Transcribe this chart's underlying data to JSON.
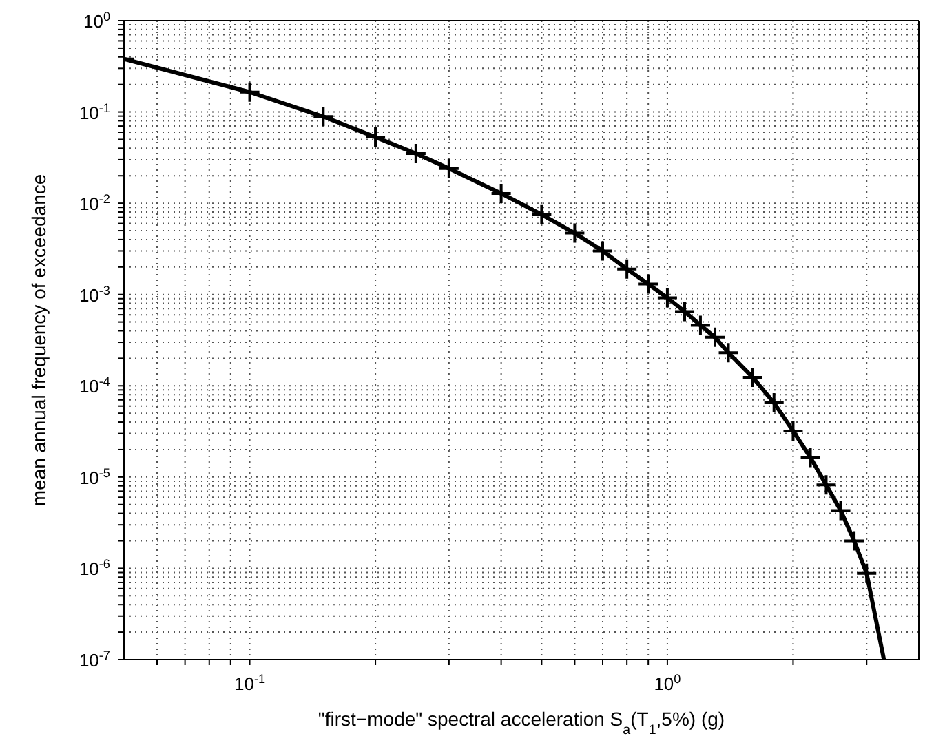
{
  "chart_data": {
    "type": "line",
    "xlabel": "\"first−mode\" spectral acceleration S$_{a}$(T$_{1}$,5%) (g)",
    "ylabel": "mean annual frequency of exceedance",
    "log": "xy",
    "grid": true,
    "marker": "cross",
    "line_style": "solid",
    "xlim": [
      0.05,
      4
    ],
    "ylim": [
      1e-07,
      1
    ],
    "xticks": [
      {
        "value": 0.06,
        "label": null
      },
      {
        "value": 0.07,
        "label": null
      },
      {
        "value": 0.08,
        "label": null
      },
      {
        "value": 0.09,
        "label": null
      },
      {
        "value": 0.1,
        "label": "10$^{-1}$"
      },
      {
        "value": 0.2,
        "label": null
      },
      {
        "value": 0.3,
        "label": null
      },
      {
        "value": 0.4,
        "label": null
      },
      {
        "value": 0.5,
        "label": null
      },
      {
        "value": 0.6,
        "label": null
      },
      {
        "value": 0.7,
        "label": null
      },
      {
        "value": 0.8,
        "label": null
      },
      {
        "value": 0.9,
        "label": null
      },
      {
        "value": 1,
        "label": "10$^{0}$"
      },
      {
        "value": 2,
        "label": null
      },
      {
        "value": 3,
        "label": null
      }
    ],
    "yticks": [
      {
        "value": 1e-07,
        "label": "10$^{-7}$"
      },
      {
        "value": 2e-07,
        "label": null
      },
      {
        "value": 3e-07,
        "label": null
      },
      {
        "value": 4e-07,
        "label": null
      },
      {
        "value": 5e-07,
        "label": null
      },
      {
        "value": 6e-07,
        "label": null
      },
      {
        "value": 7e-07,
        "label": null
      },
      {
        "value": 8e-07,
        "label": null
      },
      {
        "value": 9e-07,
        "label": null
      },
      {
        "value": 1e-06,
        "label": "10$^{-6}$"
      },
      {
        "value": 2e-06,
        "label": null
      },
      {
        "value": 3e-06,
        "label": null
      },
      {
        "value": 4e-06,
        "label": null
      },
      {
        "value": 5e-06,
        "label": null
      },
      {
        "value": 6e-06,
        "label": null
      },
      {
        "value": 7e-06,
        "label": null
      },
      {
        "value": 8e-06,
        "label": null
      },
      {
        "value": 9e-06,
        "label": null
      },
      {
        "value": 1e-05,
        "label": "10$^{-5}$"
      },
      {
        "value": 2e-05,
        "label": null
      },
      {
        "value": 3e-05,
        "label": null
      },
      {
        "value": 4e-05,
        "label": null
      },
      {
        "value": 5e-05,
        "label": null
      },
      {
        "value": 6e-05,
        "label": null
      },
      {
        "value": 7e-05,
        "label": null
      },
      {
        "value": 8e-05,
        "label": null
      },
      {
        "value": 9e-05,
        "label": null
      },
      {
        "value": 0.0001,
        "label": "10$^{-4}$"
      },
      {
        "value": 0.0002,
        "label": null
      },
      {
        "value": 0.0003,
        "label": null
      },
      {
        "value": 0.0004,
        "label": null
      },
      {
        "value": 0.0005,
        "label": null
      },
      {
        "value": 0.0006,
        "label": null
      },
      {
        "value": 0.0007,
        "label": null
      },
      {
        "value": 0.0008,
        "label": null
      },
      {
        "value": 0.0009,
        "label": null
      },
      {
        "value": 0.001,
        "label": "10$^{-3}$"
      },
      {
        "value": 0.002,
        "label": null
      },
      {
        "value": 0.003,
        "label": null
      },
      {
        "value": 0.004,
        "label": null
      },
      {
        "value": 0.005,
        "label": null
      },
      {
        "value": 0.006,
        "label": null
      },
      {
        "value": 0.007,
        "label": null
      },
      {
        "value": 0.008,
        "label": null
      },
      {
        "value": 0.009,
        "label": null
      },
      {
        "value": 0.01,
        "label": "10$^{-2}$"
      },
      {
        "value": 0.02,
        "label": null
      },
      {
        "value": 0.03,
        "label": null
      },
      {
        "value": 0.04,
        "label": null
      },
      {
        "value": 0.05,
        "label": null
      },
      {
        "value": 0.06,
        "label": null
      },
      {
        "value": 0.07,
        "label": null
      },
      {
        "value": 0.08,
        "label": null
      },
      {
        "value": 0.09,
        "label": null
      },
      {
        "value": 0.1,
        "label": "10$^{-1}$"
      },
      {
        "value": 0.2,
        "label": null
      },
      {
        "value": 0.3,
        "label": null
      },
      {
        "value": 0.4,
        "label": null
      },
      {
        "value": 0.5,
        "label": null
      },
      {
        "value": 0.6,
        "label": null
      },
      {
        "value": 0.7,
        "label": null
      },
      {
        "value": 0.8,
        "label": null
      },
      {
        "value": 0.9,
        "label": null
      },
      {
        "value": 1,
        "label": "10$^{0}$"
      }
    ],
    "series": [
      {
        "color": "#000000",
        "x": [
          0.05,
          0.1,
          0.15,
          0.2,
          0.25,
          0.3,
          0.4,
          0.5,
          0.6,
          0.7,
          0.8,
          0.9,
          1.0,
          1.1,
          1.2,
          1.3,
          1.4,
          1.6,
          1.8,
          2.0,
          2.2,
          2.4,
          2.6,
          2.8,
          3.0
        ],
        "values": [
          0.38,
          0.165,
          0.089,
          0.053,
          0.035,
          0.024,
          0.0128,
          0.0075,
          0.0047,
          0.003,
          0.0019,
          0.0013,
          0.00092,
          0.00065,
          0.00046,
          0.00034,
          0.00023,
          0.000124,
          6.5e-05,
          3.2e-05,
          1.64e-05,
          8.2e-06,
          4.3e-06,
          2e-06,
          8.8e-07
        ]
      },
      {
        "color": "#000000",
        "marker": "none",
        "x": [
          3.0,
          3.3
        ],
        "values": [
          8.8e-07,
          1e-07
        ]
      }
    ]
  }
}
